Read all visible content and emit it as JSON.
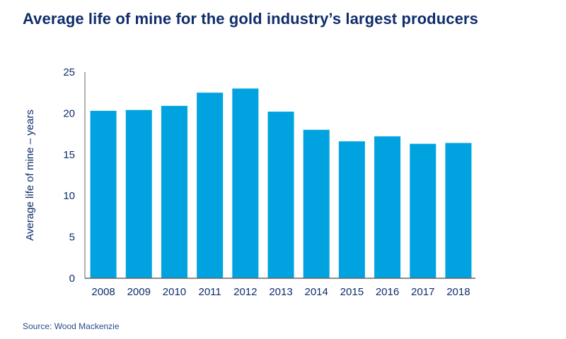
{
  "chart_data": {
    "type": "bar",
    "title": "Average life of mine for the gold industry’s largest producers",
    "xlabel": "",
    "ylabel": "Average life of mine – years",
    "categories": [
      "2008",
      "2009",
      "2010",
      "2011",
      "2012",
      "2013",
      "2014",
      "2015",
      "2016",
      "2017",
      "2018"
    ],
    "values": [
      20.3,
      20.4,
      20.9,
      22.5,
      23.0,
      20.2,
      18.0,
      16.6,
      17.2,
      16.3,
      16.4
    ],
    "ylim": [
      0,
      25
    ],
    "yticks": [
      "0",
      "5",
      "10",
      "15",
      "20",
      "25"
    ],
    "grid": false,
    "legend": "none",
    "colors": {
      "bar": "#00a3e0",
      "text": "#0f2d6b",
      "axis": "#666666"
    }
  },
  "source": "Source: Wood Mackenzie"
}
